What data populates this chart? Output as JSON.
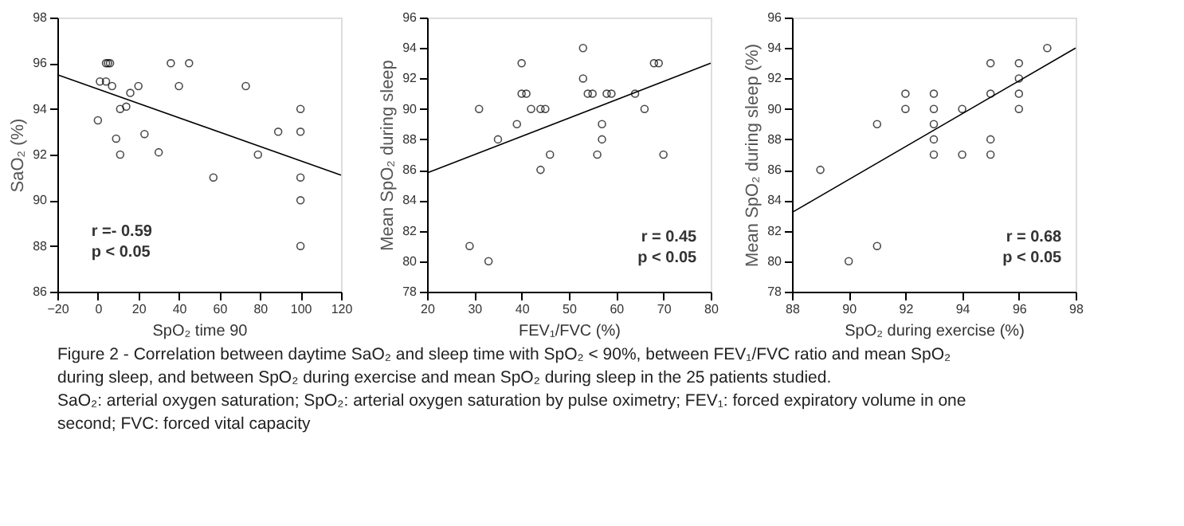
{
  "chart_data": [
    {
      "type": "scatter",
      "xlabel": "SpO₂ time   90",
      "ylabel": "SaO₂ (%)",
      "xlim": [
        -20,
        120
      ],
      "xticks": [
        -20,
        0,
        20,
        40,
        60,
        80,
        100,
        120
      ],
      "ylim": [
        86,
        98
      ],
      "yticks": [
        86,
        88,
        90,
        92,
        94,
        96,
        98
      ],
      "grid": false,
      "series": [
        {
          "type": "scatter",
          "marker": "circle",
          "color": "#000000",
          "x": [
            4,
            5,
            6,
            1,
            4,
            7,
            11,
            14,
            16,
            20,
            0,
            9,
            11,
            23,
            30,
            36,
            40,
            45,
            57,
            73,
            79,
            89,
            100,
            100,
            100,
            100,
            100
          ],
          "values": [
            96,
            96,
            96,
            95.2,
            95.2,
            95,
            94,
            94.1,
            94.7,
            95,
            93.5,
            92.7,
            92,
            92.9,
            92.1,
            96,
            95,
            96,
            91,
            95,
            92,
            93,
            94,
            93,
            91,
            90,
            88
          ]
        },
        {
          "type": "line",
          "marker": "none",
          "color": "#000000",
          "x": [
            -20,
            120
          ],
          "values": [
            95.5,
            91.1
          ]
        }
      ],
      "annotations": [
        "r =- 0.59",
        "p < 0.05",
        "Figure 2 - Correlation between daytime SaO₂ and sleep time with SpO₂ < 90%, between FEV₁/FVC ratio and mean SpO₂",
        "during sleep, and between SpO₂ during exercise and mean SpO₂ during sleep in the 25 patients studied.",
        "SaO₂: arterial oxygen saturation; SpO₂: arterial oxygen saturation by pulse oximetry; FEV₁: forced expiratory volume in one",
        "second; FVC: forced vital capacity"
      ]
    },
    {
      "type": "scatter",
      "xlabel": "FEV₁/FVC (%)",
      "ylabel": "Mean SpO₂ during sleep",
      "xlim": [
        20,
        80
      ],
      "xticks": [
        20,
        30,
        40,
        50,
        60,
        70,
        80
      ],
      "ylim": [
        78,
        96
      ],
      "yticks": [
        78,
        80,
        82,
        84,
        86,
        88,
        90,
        92,
        94,
        96
      ],
      "grid": false,
      "series": [
        {
          "type": "scatter",
          "marker": "circle",
          "color": "#000000",
          "x": [
            29,
            33,
            31,
            35,
            39,
            40,
            40,
            41,
            42,
            44,
            45,
            44,
            46,
            53,
            53,
            54,
            55,
            57,
            57,
            56,
            58,
            59,
            64,
            66,
            68,
            69,
            70
          ],
          "values": [
            81,
            80,
            90,
            88,
            89,
            93,
            91,
            91,
            90,
            90,
            90,
            86,
            87,
            94,
            92,
            91,
            91,
            89,
            88,
            87,
            91,
            91,
            91,
            90,
            93,
            93,
            87
          ]
        },
        {
          "type": "line",
          "marker": "none",
          "color": "#000000",
          "x": [
            20,
            80
          ],
          "values": [
            85.8,
            93
          ]
        }
      ],
      "annotations": [
        "r = 0.45",
        "p < 0.05"
      ]
    },
    {
      "type": "scatter",
      "xlabel": "SpO₂ during exercise (%)",
      "ylabel": "Mean SpO₂ during sleep (%)",
      "xlim": [
        88,
        98
      ],
      "xticks": [
        88,
        90,
        92,
        94,
        96,
        98
      ],
      "ylim": [
        78,
        96
      ],
      "yticks": [
        78,
        80,
        82,
        84,
        86,
        88,
        90,
        92,
        94,
        96
      ],
      "grid": false,
      "series": [
        {
          "type": "scatter",
          "marker": "circle",
          "color": "#000000",
          "x": [
            89,
            90,
            91,
            91,
            92,
            92,
            93,
            93,
            93,
            93,
            93,
            94,
            94,
            95,
            95,
            95,
            95,
            96,
            96,
            96,
            96,
            97
          ],
          "values": [
            86,
            80,
            81,
            89,
            91,
            90,
            91,
            90,
            89,
            88,
            87,
            90,
            87,
            93,
            91,
            88,
            87,
            93,
            92,
            91,
            90,
            94
          ]
        },
        {
          "type": "line",
          "marker": "none",
          "color": "#000000",
          "x": [
            88,
            98
          ],
          "values": [
            83.2,
            94
          ]
        }
      ],
      "annotations": [
        "r = 0.68",
        "p < 0.05"
      ]
    }
  ]
}
